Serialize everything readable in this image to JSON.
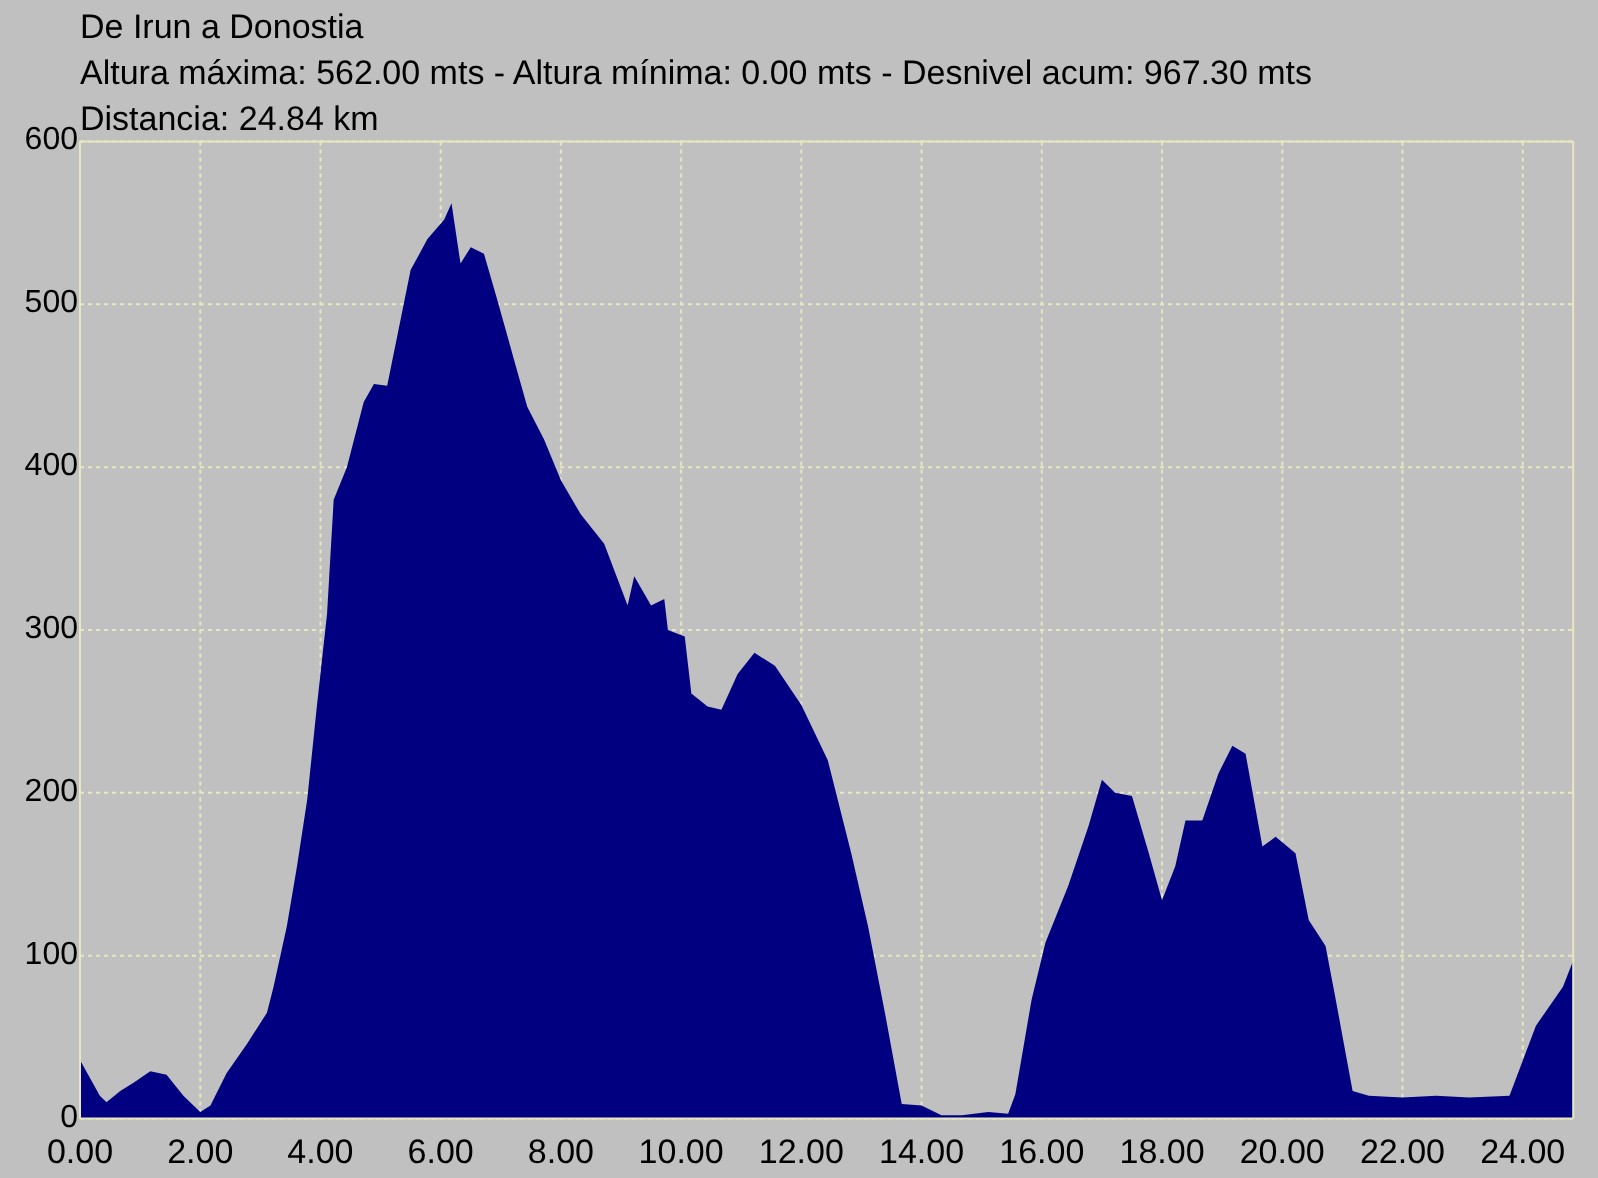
{
  "chart_data": {
    "type": "area",
    "title": "De Irun a Donostia",
    "subtitle": "Altura máxima: 562.00 mts - Altura mínima: 0.00 mts - Desnivel acum: 967.30 mts",
    "annotations": [
      "Distancia: 24.84 km"
    ],
    "x": [
      0,
      0.33,
      0.44,
      0.67,
      0.89,
      1.17,
      1.44,
      1.72,
      2.0,
      2.17,
      2.44,
      2.78,
      3.11,
      3.22,
      3.44,
      3.61,
      3.78,
      3.94,
      4.11,
      4.22,
      4.44,
      4.72,
      4.89,
      5.11,
      5.33,
      5.5,
      5.78,
      6.06,
      6.18,
      6.33,
      6.5,
      6.72,
      6.94,
      7.22,
      7.44,
      7.72,
      8.0,
      8.33,
      8.72,
      9.11,
      9.22,
      9.5,
      9.72,
      9.78,
      10.06,
      10.17,
      10.44,
      10.67,
      10.94,
      11.22,
      11.56,
      12.0,
      12.44,
      12.83,
      13.11,
      13.39,
      13.67,
      14.0,
      14.33,
      14.67,
      15.11,
      15.44,
      15.56,
      15.83,
      16.06,
      16.44,
      16.78,
      17.0,
      17.22,
      17.5,
      17.78,
      18.0,
      18.22,
      18.39,
      18.67,
      18.94,
      19.17,
      19.39,
      19.67,
      19.89,
      20.22,
      20.44,
      20.72,
      20.89,
      21.17,
      21.44,
      22.0,
      22.56,
      23.11,
      23.78,
      24.22,
      24.67,
      24.84
    ],
    "series": [
      {
        "color": "#000080",
        "values": [
          36,
          14,
          10,
          17,
          22,
          29,
          27,
          14,
          4,
          8,
          28,
          46,
          65,
          81,
          118,
          155,
          196,
          253,
          310,
          380,
          400,
          440,
          451,
          450,
          490,
          521,
          540,
          552,
          562,
          525,
          535,
          531,
          503,
          466,
          437,
          417,
          392,
          371,
          353,
          315,
          333,
          315,
          319,
          300,
          296,
          261,
          253,
          251,
          273,
          286,
          278,
          254,
          220,
          163,
          118,
          65,
          9,
          8,
          2,
          2,
          4,
          3,
          15,
          73,
          108,
          143,
          180,
          208,
          200,
          198,
          163,
          134,
          155,
          183,
          183,
          212,
          229,
          224,
          167,
          173,
          163,
          122,
          106,
          73,
          17,
          14,
          13,
          14,
          13,
          14,
          57,
          81,
          97
        ]
      }
    ],
    "xlim": [
      0,
      24.84
    ],
    "ylim": [
      0,
      600
    ],
    "xticks": [
      {
        "value": 0,
        "label": "0.00"
      },
      {
        "value": 2,
        "label": "2.00"
      },
      {
        "value": 4,
        "label": "4.00"
      },
      {
        "value": 6,
        "label": "6.00"
      },
      {
        "value": 8,
        "label": "8.00"
      },
      {
        "value": 10,
        "label": "10.00"
      },
      {
        "value": 12,
        "label": "12.00"
      },
      {
        "value": 14,
        "label": "14.00"
      },
      {
        "value": 16,
        "label": "16.00"
      },
      {
        "value": 18,
        "label": "18.00"
      },
      {
        "value": 20,
        "label": "20.00"
      },
      {
        "value": 22,
        "label": "22.00"
      },
      {
        "value": 24,
        "label": "24.00"
      }
    ],
    "yticks": [
      0,
      100,
      200,
      300,
      400,
      500,
      600
    ],
    "grid": true
  }
}
